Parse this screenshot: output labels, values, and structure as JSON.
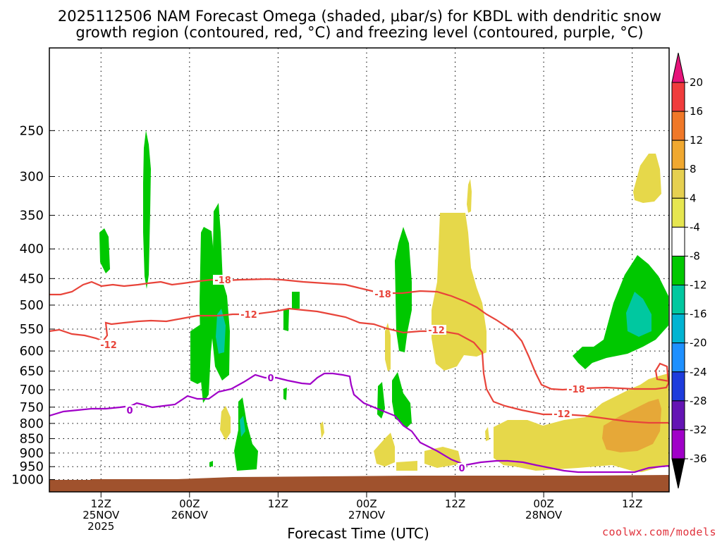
{
  "chart_data": {
    "type": "heatmap",
    "title_line1": "2025112506 NAM Forecast Omega (shaded, μbar/s) for KBDL with dendritic snow",
    "title_line2": "growth region (contoured, red, °C) and freezing level (contoured, purple, °C)",
    "xlabel": "Forecast Time (UTC)",
    "ylabel": "",
    "y_scale": "log-pressure",
    "y_unit": "hPa",
    "y_range": [
      1050,
      180
    ],
    "y_ticks": [
      "250",
      "300",
      "350",
      "400",
      "450",
      "500",
      "550",
      "600",
      "650",
      "700",
      "750",
      "800",
      "850",
      "900",
      "950",
      "1000"
    ],
    "x_range_hours": [
      -7,
      77
    ],
    "x_ticks": [
      {
        "line1": "12Z",
        "line2": "25NOV",
        "line3": "2025"
      },
      {
        "line1": "00Z",
        "line2": "26NOV",
        "line3": ""
      },
      {
        "line1": "12Z",
        "line2": "",
        "line3": ""
      },
      {
        "line1": "00Z",
        "line2": "27NOV",
        "line3": ""
      },
      {
        "line1": "12Z",
        "line2": "",
        "line3": ""
      },
      {
        "line1": "00Z",
        "line2": "28NOV",
        "line3": ""
      },
      {
        "line1": "12Z",
        "line2": "",
        "line3": ""
      }
    ],
    "grid": true,
    "colorbar": {
      "labels": [
        "20",
        "16",
        "12",
        "8",
        "4",
        "-4",
        "-8",
        "-12",
        "-16",
        "-20",
        "-24",
        "-28",
        "-32",
        "-36"
      ],
      "colors": [
        "#e6147a",
        "#f03c3c",
        "#f07828",
        "#f0a830",
        "#e6d050",
        "#e6e650",
        "#ffffff",
        "#00c800",
        "#00c8a0",
        "#00b4d2",
        "#1e90ff",
        "#1e3cdc",
        "#6414b4",
        "#a000c8",
        "#a0a0a0",
        "#000000"
      ]
    },
    "contour_labels": [
      {
        "text": "-18",
        "color": "#e8443a"
      },
      {
        "text": "-18",
        "color": "#e8443a"
      },
      {
        "text": "-18",
        "color": "#e8443a"
      },
      {
        "text": "-12",
        "color": "#e8443a"
      },
      {
        "text": "-12",
        "color": "#e8443a"
      },
      {
        "text": "-12",
        "color": "#e8443a"
      },
      {
        "text": "-12",
        "color": "#e8443a"
      },
      {
        "text": "0",
        "color": "#a000c8"
      },
      {
        "text": "0",
        "color": "#a000c8"
      },
      {
        "text": "0",
        "color": "#a000c8"
      }
    ]
  },
  "credit": "coolwx.com/models"
}
